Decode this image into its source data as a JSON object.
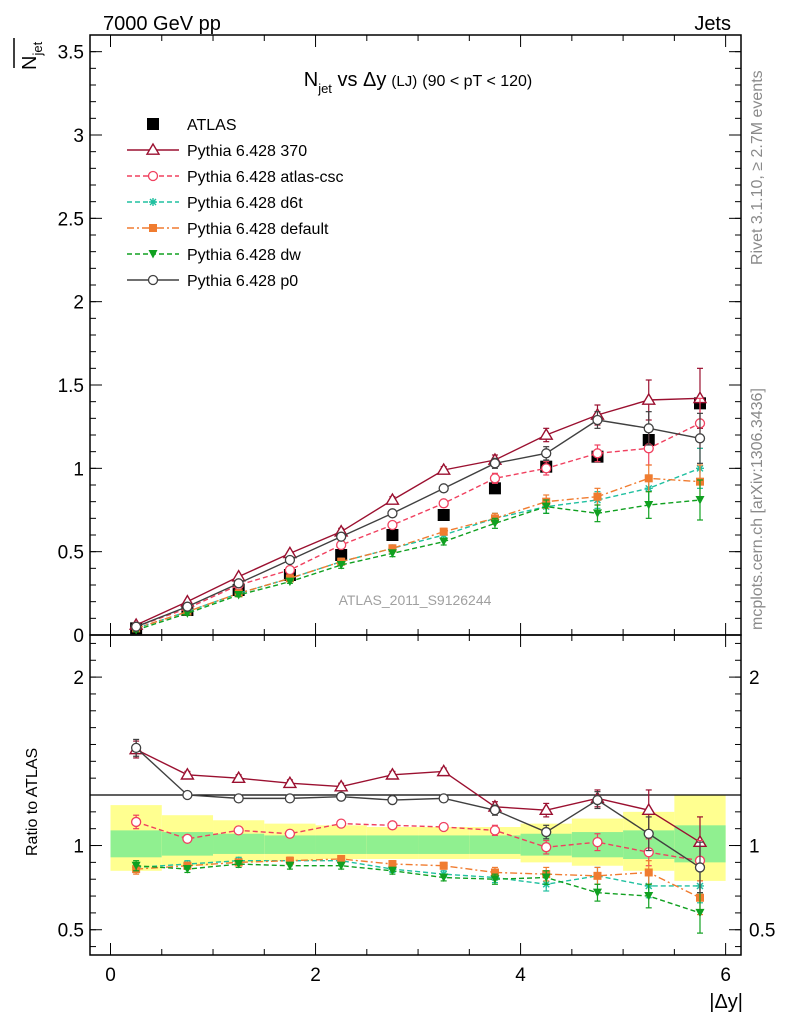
{
  "header": {
    "left": "7000 GeV pp",
    "right": "Jets"
  },
  "side_labels": {
    "top": "Rivet 3.1.10, ≥ 2.7M events",
    "bottom": "mcplots.cern.ch [arXiv:1306.3436]"
  },
  "watermark": "ATLAS_2011_S9126244",
  "title": {
    "main": "N",
    "main_sub": "jet",
    "vs": " vs Δy",
    "paren": "(LJ)",
    "range": "(90 < pT < 120)"
  },
  "ylabel_main": {
    "text": "N",
    "sub": "jet"
  },
  "ylabel_ratio": "Ratio to ATLAS",
  "xlabel": "|Δy|",
  "colors": {
    "ATLAS": "#000000",
    "Pythia 6.428 370": "#9b1030",
    "Pythia 6.428 atlas-csc": "#f0405f",
    "Pythia 6.428 d6t": "#20c0a0",
    "Pythia 6.428 default": "#f07c30",
    "Pythia 6.428 dw": "#10a020",
    "Pythia 6.428 p0": "#404040",
    "band_inner": "#90f090",
    "band_outer": "#ffff90"
  },
  "chart_data": [
    {
      "type": "line",
      "panel": "main",
      "xlim": [
        -0.2,
        6.15
      ],
      "ylim": [
        0,
        3.6
      ],
      "x_ticks": [
        0,
        2,
        4,
        6
      ],
      "y_ticks": [
        0,
        0.5,
        1,
        1.5,
        2,
        2.5,
        3,
        3.5
      ],
      "y_tick_labels": [
        "0",
        "0.5",
        "1",
        "1.5",
        "2",
        "2.5",
        "3",
        "3.5"
      ],
      "legend_placement": "top-left",
      "x": [
        0.25,
        0.75,
        1.25,
        1.75,
        2.25,
        2.75,
        3.25,
        3.75,
        4.25,
        4.75,
        5.25,
        5.75
      ],
      "series": [
        {
          "name": "ATLAS",
          "marker": "square",
          "line": "none",
          "values": [
            0.04,
            0.15,
            0.27,
            0.36,
            0.48,
            0.6,
            0.72,
            0.88,
            1.01,
            1.07,
            1.17,
            1.39
          ]
        },
        {
          "name": "Pythia 6.428 370",
          "marker": "triangle-open",
          "line": "solid",
          "values": [
            0.06,
            0.2,
            0.35,
            0.49,
            0.62,
            0.81,
            0.99,
            1.05,
            1.2,
            1.32,
            1.41,
            1.42
          ],
          "errors": [
            0.01,
            0.01,
            0.01,
            0.01,
            0.02,
            0.02,
            0.02,
            0.03,
            0.04,
            0.06,
            0.12,
            0.18
          ]
        },
        {
          "name": "Pythia 6.428 atlas-csc",
          "marker": "circle-open",
          "line": "dashed",
          "values": [
            0.05,
            0.16,
            0.3,
            0.39,
            0.54,
            0.66,
            0.79,
            0.94,
            1.0,
            1.09,
            1.12,
            1.27
          ],
          "errors": [
            0.01,
            0.01,
            0.01,
            0.01,
            0.02,
            0.02,
            0.02,
            0.03,
            0.04,
            0.05,
            0.1,
            0.15
          ]
        },
        {
          "name": "Pythia 6.428 d6t",
          "marker": "star",
          "line": "dashed",
          "values": [
            0.04,
            0.14,
            0.25,
            0.34,
            0.44,
            0.52,
            0.6,
            0.7,
            0.77,
            0.81,
            0.88,
            1.0
          ],
          "errors": [
            0.01,
            0.01,
            0.01,
            0.01,
            0.02,
            0.02,
            0.02,
            0.03,
            0.04,
            0.05,
            0.08,
            0.12
          ]
        },
        {
          "name": "Pythia 6.428 default",
          "marker": "square",
          "line": "dashdot",
          "values": [
            0.04,
            0.14,
            0.25,
            0.34,
            0.44,
            0.52,
            0.62,
            0.7,
            0.8,
            0.83,
            0.94,
            0.92
          ],
          "errors": [
            0.01,
            0.01,
            0.01,
            0.01,
            0.02,
            0.02,
            0.02,
            0.03,
            0.04,
            0.05,
            0.08,
            0.1
          ]
        },
        {
          "name": "Pythia 6.428 dw",
          "marker": "triangle-down",
          "line": "dashed",
          "values": [
            0.03,
            0.13,
            0.24,
            0.32,
            0.42,
            0.49,
            0.56,
            0.67,
            0.77,
            0.73,
            0.78,
            0.81
          ],
          "errors": [
            0.01,
            0.01,
            0.01,
            0.01,
            0.02,
            0.02,
            0.02,
            0.03,
            0.04,
            0.05,
            0.08,
            0.12
          ]
        },
        {
          "name": "Pythia 6.428 p0",
          "marker": "circle-open",
          "line": "solid",
          "values": [
            0.05,
            0.17,
            0.31,
            0.45,
            0.59,
            0.73,
            0.88,
            1.03,
            1.09,
            1.29,
            1.24,
            1.18
          ],
          "errors": [
            0.01,
            0.01,
            0.01,
            0.01,
            0.02,
            0.02,
            0.02,
            0.03,
            0.04,
            0.05,
            0.1,
            0.15
          ]
        }
      ]
    },
    {
      "type": "line",
      "panel": "ratio",
      "xlim": [
        -0.2,
        6.15
      ],
      "ylim": [
        0.35,
        2.25
      ],
      "x_ticks": [
        0,
        2,
        4,
        6
      ],
      "x_tick_labels": [
        "0",
        "2",
        "4",
        "6"
      ],
      "y_ticks": [
        0.5,
        1,
        2
      ],
      "y_tick_labels": [
        "0.5",
        "1",
        "2"
      ],
      "x": [
        0.25,
        0.75,
        1.25,
        1.75,
        2.25,
        2.75,
        3.25,
        3.75,
        4.25,
        4.75,
        5.25,
        5.75
      ],
      "bands": {
        "edges": [
          0,
          0.5,
          1,
          1.5,
          2,
          2.5,
          3,
          3.5,
          4,
          4.5,
          5,
          5.5,
          6
        ],
        "inner": [
          [
            0.93,
            1.09
          ],
          [
            0.94,
            1.08
          ],
          [
            0.95,
            1.07
          ],
          [
            0.95,
            1.06
          ],
          [
            0.95,
            1.06
          ],
          [
            0.95,
            1.06
          ],
          [
            0.95,
            1.06
          ],
          [
            0.95,
            1.06
          ],
          [
            0.94,
            1.07
          ],
          [
            0.93,
            1.08
          ],
          [
            0.92,
            1.09
          ],
          [
            0.9,
            1.12
          ]
        ],
        "outer": [
          [
            0.85,
            1.24
          ],
          [
            0.88,
            1.18
          ],
          [
            0.9,
            1.15
          ],
          [
            0.91,
            1.13
          ],
          [
            0.92,
            1.12
          ],
          [
            0.92,
            1.11
          ],
          [
            0.92,
            1.11
          ],
          [
            0.92,
            1.11
          ],
          [
            0.9,
            1.13
          ],
          [
            0.88,
            1.16
          ],
          [
            0.85,
            1.2
          ],
          [
            0.79,
            1.3
          ]
        ]
      },
      "series": [
        {
          "name": "Pythia 6.428 370",
          "values": [
            1.57,
            1.42,
            1.4,
            1.37,
            1.35,
            1.42,
            1.44,
            1.23,
            1.21,
            1.28,
            1.21,
            1.02
          ],
          "errors": [
            0.05,
            0.02,
            0.02,
            0.02,
            0.02,
            0.02,
            0.02,
            0.03,
            0.04,
            0.05,
            0.12,
            0.15
          ]
        },
        {
          "name": "Pythia 6.428 atlas-csc",
          "values": [
            1.14,
            1.04,
            1.09,
            1.07,
            1.13,
            1.12,
            1.11,
            1.09,
            0.99,
            1.02,
            0.96,
            0.91
          ],
          "errors": [
            0.04,
            0.02,
            0.02,
            0.02,
            0.02,
            0.02,
            0.02,
            0.03,
            0.04,
            0.05,
            0.08,
            0.12
          ]
        },
        {
          "name": "Pythia 6.428 d6t",
          "values": [
            0.87,
            0.89,
            0.91,
            0.91,
            0.91,
            0.86,
            0.83,
            0.81,
            0.77,
            0.82,
            0.76,
            0.76
          ],
          "errors": [
            0.03,
            0.02,
            0.02,
            0.02,
            0.02,
            0.02,
            0.02,
            0.03,
            0.04,
            0.05,
            0.07,
            0.1
          ]
        },
        {
          "name": "Pythia 6.428 default",
          "values": [
            0.86,
            0.88,
            0.9,
            0.91,
            0.92,
            0.89,
            0.88,
            0.84,
            0.83,
            0.82,
            0.84,
            0.69
          ],
          "errors": [
            0.03,
            0.02,
            0.02,
            0.02,
            0.02,
            0.02,
            0.02,
            0.03,
            0.04,
            0.05,
            0.07,
            0.1
          ]
        },
        {
          "name": "Pythia 6.428 dw",
          "values": [
            0.88,
            0.86,
            0.89,
            0.88,
            0.88,
            0.85,
            0.81,
            0.8,
            0.81,
            0.72,
            0.7,
            0.6
          ],
          "errors": [
            0.03,
            0.02,
            0.02,
            0.02,
            0.02,
            0.02,
            0.02,
            0.03,
            0.04,
            0.05,
            0.07,
            0.12
          ]
        },
        {
          "name": "Pythia 6.428 p0",
          "values": [
            1.58,
            1.3,
            1.28,
            1.28,
            1.29,
            1.27,
            1.28,
            1.21,
            1.08,
            1.27,
            1.07,
            0.87
          ],
          "errors": [
            0.05,
            0.02,
            0.02,
            0.02,
            0.02,
            0.02,
            0.02,
            0.03,
            0.04,
            0.05,
            0.1,
            0.15
          ]
        }
      ]
    }
  ]
}
